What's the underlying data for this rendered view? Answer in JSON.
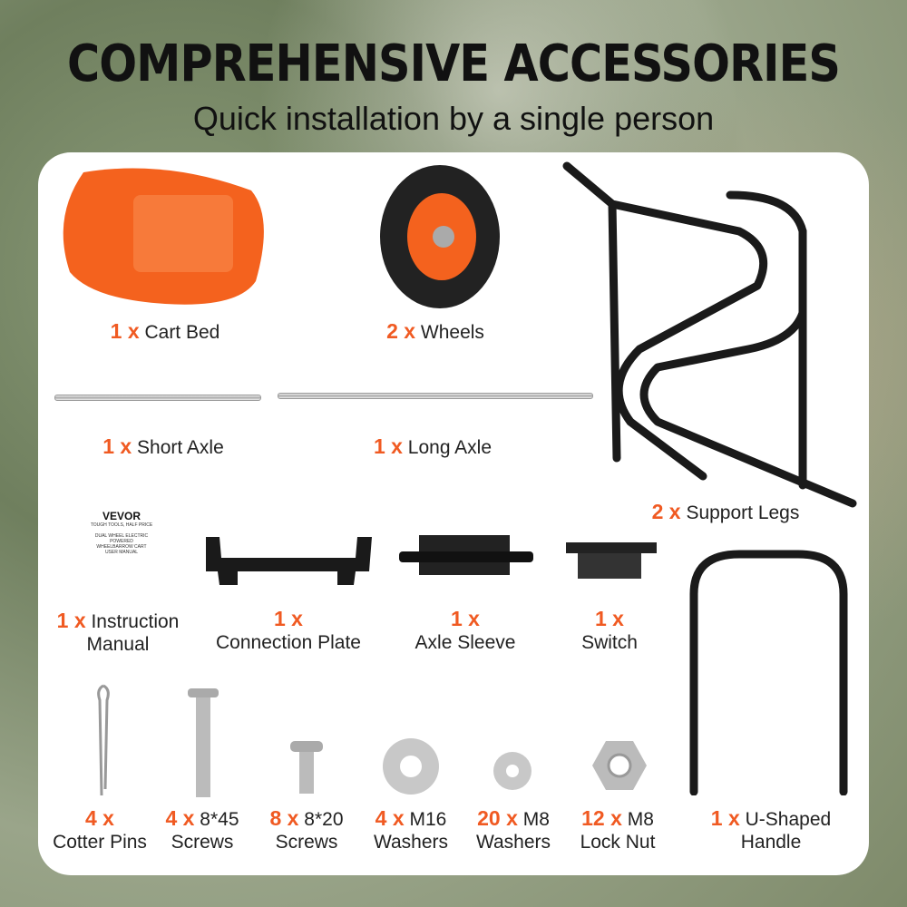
{
  "header": {
    "title": "COMPREHENSIVE ACCESSORIES",
    "subtitle": "Quick installation by a single person"
  },
  "accent_color": "#f05a22",
  "manual_cover": {
    "brand": "VEVOR",
    "tagline": "TOUGH TOOLS, HALF PRICE",
    "title_line1": "DUAL WHEEL ELECTRIC POWERED",
    "title_line2": "WHEELBARROW CART",
    "title_line3": "USER MANUAL"
  },
  "items": [
    {
      "qty": "1 x",
      "name": "Cart Bed"
    },
    {
      "qty": "2 x",
      "name": "Wheels"
    },
    {
      "qty": "1 x",
      "name": "Short Axle"
    },
    {
      "qty": "1 x",
      "name": "Long Axle"
    },
    {
      "qty": "2 x",
      "name": "Support Legs"
    },
    {
      "qty": "1 x",
      "name": "Instruction",
      "name2": "Manual"
    },
    {
      "qty": "1 x",
      "name": "Connection Plate"
    },
    {
      "qty": "1 x",
      "name": "Axle Sleeve"
    },
    {
      "qty": "1 x",
      "name": "Switch"
    },
    {
      "qty": "4 x",
      "name": "Cotter Pins"
    },
    {
      "qty": "4 x",
      "spec": "8*45",
      "name": "Screws"
    },
    {
      "qty": "8 x",
      "spec": "8*20",
      "name": "Screws"
    },
    {
      "qty": "4 x",
      "spec": "M16",
      "name": "Washers"
    },
    {
      "qty": "20 x",
      "spec": "M8",
      "name": "Washers"
    },
    {
      "qty": "12 x",
      "spec": "M8",
      "name": "Lock Nut"
    },
    {
      "qty": "1 x",
      "spec": "U-Shaped",
      "name": "Handle"
    }
  ]
}
